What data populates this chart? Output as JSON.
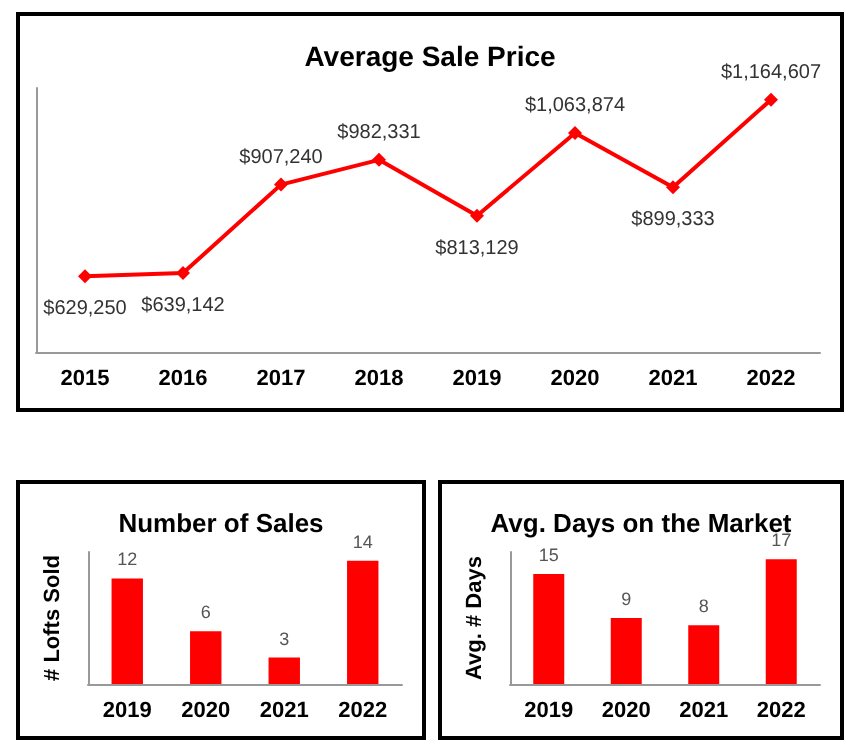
{
  "chart_data": [
    {
      "type": "line",
      "title": "Average Sale Price",
      "categories": [
        "2015",
        "2016",
        "2017",
        "2018",
        "2019",
        "2020",
        "2021",
        "2022"
      ],
      "color": "#ff0000",
      "marker": "diamond",
      "values": [
        629250,
        639142,
        907240,
        982331,
        813129,
        1063874,
        899333,
        1164607
      ],
      "value_labels": [
        "$629,250",
        "$639,142",
        "$907,240",
        "$982,331",
        "$813,129",
        "$1,063,874",
        "$899,333",
        "$1,164,607"
      ]
    },
    {
      "type": "bar",
      "title": "Number of Sales",
      "ylabel": "# Lofts Sold",
      "categories": [
        "2019",
        "2020",
        "2021",
        "2022"
      ],
      "color": "#ff0000",
      "values": [
        12,
        6,
        3,
        14
      ],
      "data_labels": true
    },
    {
      "type": "bar",
      "title": "Avg. Days on the Market",
      "ylabel": "Avg. # Days",
      "categories": [
        "2019",
        "2020",
        "2021",
        "2022"
      ],
      "color": "#ff0000",
      "values": [
        15,
        9,
        8,
        17
      ],
      "data_labels": true
    }
  ]
}
